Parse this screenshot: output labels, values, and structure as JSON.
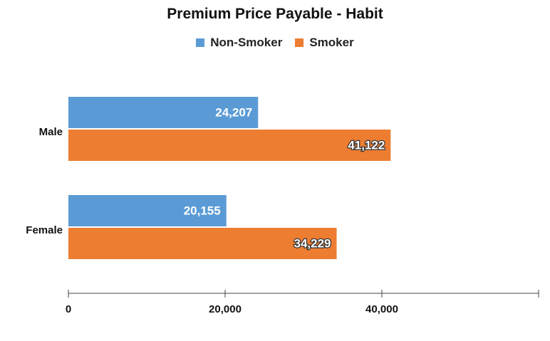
{
  "chart_data": {
    "type": "bar",
    "orientation": "horizontal",
    "title": "Premium Price Payable - Habit",
    "categories": [
      "Male",
      "Female"
    ],
    "series": [
      {
        "name": "Non-Smoker",
        "values": [
          24207,
          20155
        ],
        "labels": [
          "24,207",
          "20,155"
        ],
        "color": "#5b9bd5"
      },
      {
        "name": "Smoker",
        "values": [
          41122,
          34229
        ],
        "labels": [
          "41,122",
          "34,229"
        ],
        "color": "#ed7d31"
      }
    ],
    "xlim": [
      0,
      60000
    ],
    "xticks": [
      0,
      20000,
      40000
    ],
    "xtick_labels": [
      "0",
      "20,000",
      "40,000"
    ],
    "legend": "top-center",
    "grid": false
  }
}
